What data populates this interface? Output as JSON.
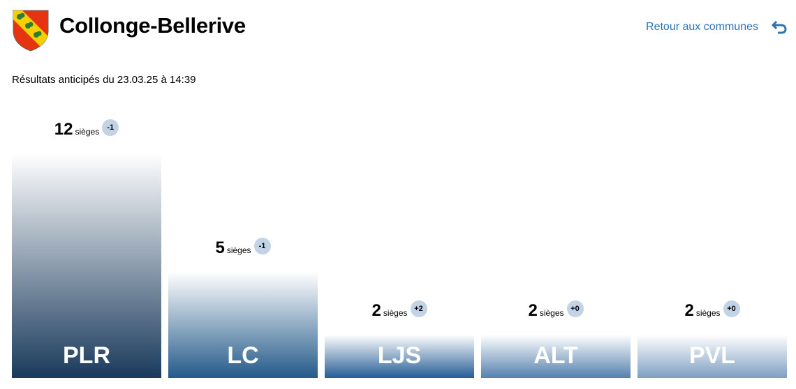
{
  "header": {
    "title": "Collonge-Bellerive",
    "back_link": "Retour aux communes",
    "back_icon": "return-arrow-icon",
    "crest_colors": {
      "field": "#e63312",
      "bend": "#f4d000",
      "clover": "#2e7d32"
    }
  },
  "subtitle": "Résultats anticipés du 23.03.25 à 14:39",
  "chart_data": {
    "type": "bar",
    "categories": [
      "PLR",
      "LC",
      "LJS",
      "ALT",
      "PVL"
    ],
    "values": [
      12,
      5,
      2,
      2,
      2
    ],
    "unit_label": "sièges",
    "deltas": [
      "-1",
      "-1",
      "+2",
      "+0",
      "+0"
    ],
    "colors": [
      "#1a3a5c",
      "#245a8a",
      "#255d96",
      "#5481ad",
      "#7fa0c2"
    ]
  }
}
